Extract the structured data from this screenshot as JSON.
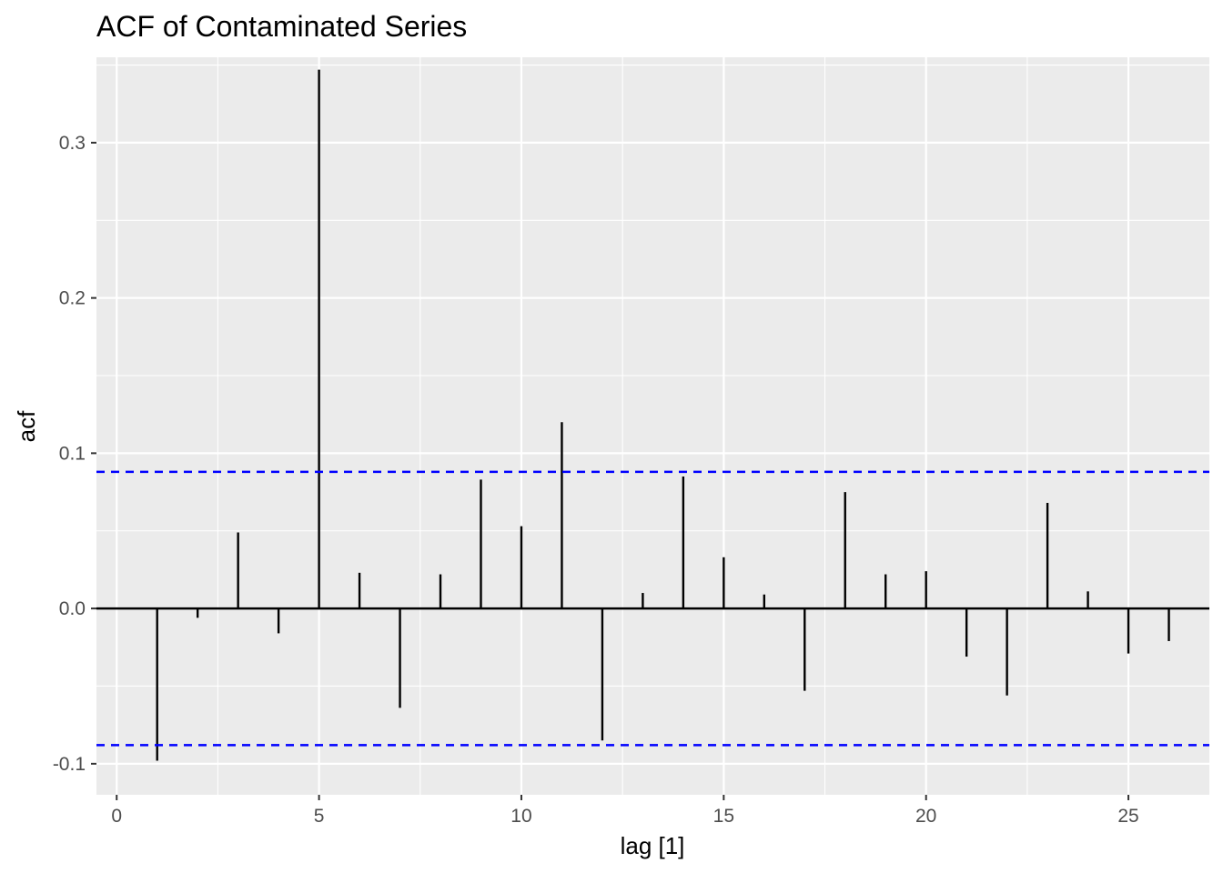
{
  "chart_data": {
    "type": "bar",
    "title": "ACF of Contaminated Series",
    "xlabel": "lag [1]",
    "ylabel": "acf",
    "xlim": [
      -0.5,
      27
    ],
    "ylim": [
      -0.12,
      0.355
    ],
    "x_ticks": [
      0,
      5,
      10,
      15,
      20,
      25
    ],
    "y_ticks": [
      -0.1,
      0.0,
      0.1,
      0.2,
      0.3
    ],
    "x_tick_labels": [
      "0",
      "5",
      "10",
      "15",
      "20",
      "25"
    ],
    "y_tick_labels": [
      "-0.1",
      "0.0",
      "0.1",
      "0.2",
      "0.3"
    ],
    "lags": [
      1,
      2,
      3,
      4,
      5,
      6,
      7,
      8,
      9,
      10,
      11,
      12,
      13,
      14,
      15,
      16,
      17,
      18,
      19,
      20,
      21,
      22,
      23,
      24,
      25,
      26
    ],
    "values": [
      -0.098,
      -0.006,
      0.049,
      -0.016,
      0.347,
      0.023,
      -0.064,
      0.022,
      0.083,
      0.053,
      0.12,
      -0.085,
      0.01,
      0.085,
      0.033,
      0.009,
      -0.053,
      0.075,
      0.022,
      0.024,
      -0.031,
      -0.056,
      0.068,
      0.011,
      -0.029,
      -0.021
    ],
    "confidence_bound": 0.088,
    "grid": true,
    "colors": {
      "panel_background": "#ebebeb",
      "grid": "#ffffff",
      "bars": "#000000",
      "confidence_lines": "#0000ff"
    }
  }
}
